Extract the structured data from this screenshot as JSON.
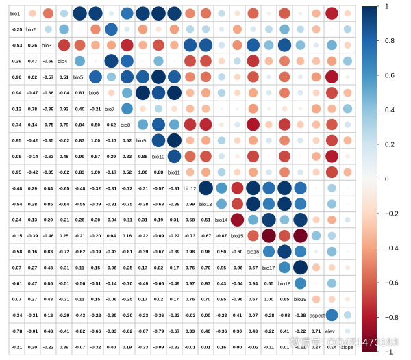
{
  "chart_data": {
    "type": "heatmap",
    "variables": [
      "bio1",
      "bio2",
      "bio3",
      "bio4",
      "bio5",
      "bio6",
      "bio7",
      "bio8",
      "bio9",
      "bio10",
      "bio11",
      "bio12",
      "bio13",
      "bio14",
      "bio15",
      "bio16",
      "bio17",
      "bio18",
      "bio19",
      "aspect",
      "elev",
      "slope"
    ],
    "lower_triangle_labels": [
      [],
      [
        "-0.25"
      ],
      [
        "-0.53",
        "0.26"
      ],
      [
        "0.29",
        "0.47",
        "-0.69"
      ],
      [
        "0.96",
        "0.02",
        "-0.57",
        "0.51"
      ],
      [
        "0.94",
        "-0.47",
        "-0.36",
        "-0.04",
        "0.81"
      ],
      [
        "0.12",
        "0.78",
        "-0.39",
        "0.92",
        "0.40",
        "-0.21"
      ],
      [
        "0.74",
        "0.14",
        "-0.75",
        "0.79",
        "0.84",
        "0.50",
        "0.62"
      ],
      [
        "0.95",
        "-0.42",
        "-0.35",
        "-0.02",
        "0.83",
        "1.00",
        "-0.17",
        "0.52"
      ],
      [
        "0.98",
        "-0.14",
        "-0.63",
        "0.46",
        "0.99",
        "0.87",
        "0.29",
        "0.83",
        "0.88"
      ],
      [
        "0.95",
        "-0.42",
        "-0.35",
        "-0.02",
        "0.83",
        "1.00",
        "-0.17",
        "0.52",
        "1.00",
        "0.88"
      ],
      [
        "-0.48",
        "0.29",
        "0.84",
        "-0.65",
        "-0.48",
        "-0.32",
        "-0.31",
        "-0.72",
        "-0.31",
        "-0.57",
        "-0.31"
      ],
      [
        "-0.54",
        "0.28",
        "0.85",
        "-0.64",
        "-0.55",
        "-0.39",
        "-0.31",
        "-0.75",
        "-0.38",
        "-0.63",
        "-0.38",
        "0.99"
      ],
      [
        "0.24",
        "0.13",
        "0.20",
        "-0.21",
        "0.26",
        "0.30",
        "-0.04",
        "-0.11",
        "0.31",
        "0.19",
        "0.31",
        "0.58",
        "0.51"
      ],
      [
        "-0.15",
        "-0.39",
        "-0.46",
        "0.25",
        "-0.21",
        "-0.20",
        "0.04",
        "0.16",
        "-0.22",
        "-0.09",
        "-0.22",
        "-0.73",
        "-0.67",
        "-0.87"
      ],
      [
        "-0.58",
        "0.16",
        "0.83",
        "-0.72",
        "-0.62",
        "-0.39",
        "-0.43",
        "-0.81",
        "-0.39",
        "-0.67",
        "-0.39",
        "0.98",
        "0.98",
        "0.50",
        "-0.60"
      ],
      [
        "0.07",
        "0.27",
        "0.43",
        "-0.31",
        "0.11",
        "0.15",
        "-0.06",
        "-0.25",
        "0.17",
        "0.02",
        "0.17",
        "0.76",
        "0.70",
        "0.95",
        "-0.96",
        "0.67"
      ],
      [
        "-0.61",
        "0.47",
        "0.86",
        "-0.51",
        "-0.56",
        "-0.51",
        "-0.14",
        "-0.70",
        "-0.49",
        "-0.66",
        "-0.49",
        "0.97",
        "0.97",
        "0.43",
        "-0.64",
        "0.94",
        "0.65"
      ],
      [
        "0.07",
        "0.27",
        "0.43",
        "-0.31",
        "0.11",
        "0.15",
        "-0.06",
        "-0.25",
        "0.17",
        "0.02",
        "0.17",
        "0.76",
        "0.70",
        "0.95",
        "-0.96",
        "0.67",
        "1.00",
        "0.65"
      ],
      [
        "-0.34",
        "-0.31",
        "0.12",
        "-0.29",
        "-0.43",
        "-0.22",
        "-0.39",
        "-0.30",
        "-0.23",
        "-0.36",
        "-0.23",
        "-0.03",
        "0.00",
        "-0.23",
        "0.41",
        "0.07",
        "-0.28",
        "-0.03",
        "-0.28"
      ],
      [
        "-0.78",
        "-0.01",
        "0.48",
        "-0.41",
        "-0.82",
        "-0.66",
        "-0.33",
        "-0.62",
        "-0.67",
        "-0.79",
        "-0.67",
        "0.33",
        "0.40",
        "-0.36",
        "0.30",
        "0.43",
        "-0.22",
        "0.41",
        "-0.22",
        "0.71"
      ],
      [
        "-0.21",
        "0.30",
        "-0.22",
        "0.39",
        "-0.07",
        "-0.32",
        "0.40",
        "0.19",
        "-0.33",
        "-0.09",
        "-0.33",
        "-0.01",
        "0.01",
        "0.16",
        "0.00",
        "-0.02",
        "-0.11",
        "0.01",
        "-0.11",
        "0.27",
        "0.14"
      ]
    ],
    "colorbar": {
      "range": [
        -1,
        1
      ],
      "tick_labels": [
        "1",
        "0.8",
        "0.6",
        "0.4",
        "0.2",
        "0",
        "−0.2",
        "−0.4",
        "−0.6",
        "−0.8",
        "−1"
      ],
      "colors": {
        "negative": "#67001F",
        "neutral": "#F7F7F7",
        "positive": "#053061"
      }
    },
    "upper_triangle": "circles sized and colored by correlation",
    "lower_triangle": "correlation coefficients as text",
    "grid": true
  },
  "watermark": "微信号: QQ451473183"
}
